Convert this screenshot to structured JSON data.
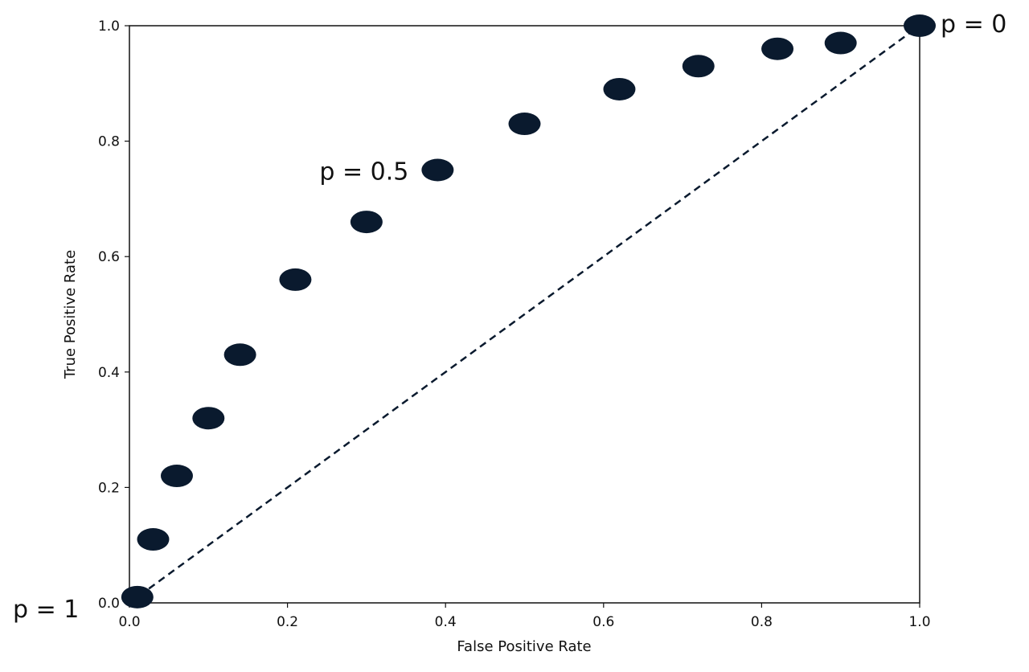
{
  "chart_data": {
    "type": "scatter",
    "title": "",
    "xlabel": "False Positive Rate",
    "ylabel": "True Positive Rate",
    "xlim": [
      0,
      1
    ],
    "ylim": [
      0,
      1
    ],
    "xticks": [
      "0.0",
      "0.2",
      "0.4",
      "0.6",
      "0.8",
      "1.0"
    ],
    "yticks": [
      "0.0",
      "0.2",
      "0.4",
      "0.6",
      "0.8",
      "1.0"
    ],
    "grid": false,
    "marker_color": "#0a1a2e",
    "points": [
      {
        "x": 0.01,
        "y": 0.01
      },
      {
        "x": 0.03,
        "y": 0.11
      },
      {
        "x": 0.06,
        "y": 0.22
      },
      {
        "x": 0.1,
        "y": 0.32
      },
      {
        "x": 0.14,
        "y": 0.43
      },
      {
        "x": 0.21,
        "y": 0.56
      },
      {
        "x": 0.3,
        "y": 0.66
      },
      {
        "x": 0.39,
        "y": 0.75
      },
      {
        "x": 0.5,
        "y": 0.83
      },
      {
        "x": 0.62,
        "y": 0.89
      },
      {
        "x": 0.72,
        "y": 0.93
      },
      {
        "x": 0.82,
        "y": 0.96
      },
      {
        "x": 0.9,
        "y": 0.97
      },
      {
        "x": 1.0,
        "y": 1.0
      }
    ],
    "reference_line": {
      "x": [
        0,
        1
      ],
      "y": [
        0,
        1
      ],
      "style": "dashed"
    },
    "annotations": [
      {
        "text": "p = 1",
        "x": 0.01,
        "y": 0.01
      },
      {
        "text": "p = 0.5",
        "x": 0.39,
        "y": 0.75
      },
      {
        "text": "p = 0",
        "x": 1.0,
        "y": 1.0
      }
    ]
  }
}
